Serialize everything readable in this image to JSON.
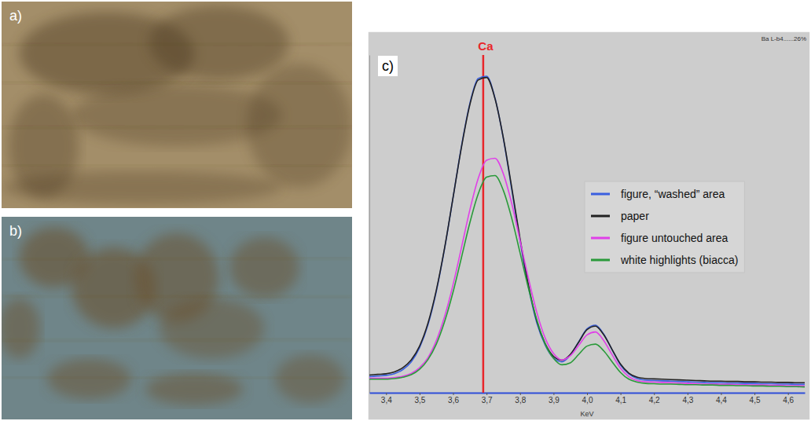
{
  "panel_labels": [
    "a)",
    "b)"
  ],
  "chart_data": {
    "type": "line",
    "panel_label": "c)",
    "x_label": "KeV",
    "x": [
      3.35,
      3.375,
      3.4,
      3.425,
      3.45,
      3.475,
      3.5,
      3.525,
      3.55,
      3.575,
      3.6,
      3.625,
      3.65,
      3.675,
      3.7,
      3.725,
      3.75,
      3.775,
      3.8,
      3.825,
      3.85,
      3.875,
      3.9,
      3.925,
      3.95,
      3.975,
      4.0,
      4.025,
      4.05,
      4.075,
      4.1,
      4.125,
      4.15,
      4.175,
      4.2,
      4.225,
      4.25,
      4.275,
      4.3,
      4.325,
      4.35,
      4.375,
      4.4,
      4.425,
      4.45,
      4.475,
      4.5,
      4.525,
      4.55,
      4.575,
      4.6,
      4.625,
      4.65
    ],
    "series": [
      {
        "name": "figure, “washed” area",
        "color": "#3a5fe0",
        "values": [
          5,
          5.2,
          5.4,
          5.9,
          7.2,
          9.6,
          14,
          21.1,
          31.5,
          45,
          60.7,
          76.6,
          89.9,
          97.7,
          98.4,
          91.7,
          79.1,
          63.3,
          47.2,
          32.8,
          21.7,
          14.8,
          10.8,
          9.6,
          11.7,
          15.8,
          19.9,
          21,
          18.2,
          13.3,
          8.6,
          5.8,
          4.4,
          3.9,
          3.8,
          3.7,
          3.6,
          3.5,
          3.4,
          3.3,
          3.2,
          3.1,
          3.1,
          3,
          3,
          2.9,
          2.9,
          2.8,
          2.8,
          2.7,
          2.7,
          2.6,
          2.6
        ]
      },
      {
        "name": "paper",
        "color": "#222222",
        "values": [
          5.5,
          5.7,
          5.9,
          6.5,
          7.8,
          10.2,
          14.5,
          21.6,
          31.9,
          45.2,
          60.7,
          76.3,
          89.5,
          97.2,
          98,
          91.5,
          79.3,
          63.9,
          47.9,
          33.5,
          22.3,
          15.3,
          11.3,
          10.1,
          11.9,
          15.7,
          19.6,
          20.7,
          18,
          13.4,
          8.9,
          6.1,
          4.8,
          4.4,
          4.3,
          4.2,
          4.1,
          4,
          3.9,
          3.8,
          3.7,
          3.6,
          3.6,
          3.5,
          3.5,
          3.4,
          3.4,
          3.3,
          3.3,
          3.2,
          3.2,
          3.1,
          3.1
        ]
      },
      {
        "name": "figure untouched area",
        "color": "#e040e8",
        "values": [
          4.5,
          4.5,
          4.5,
          4.7,
          5.1,
          6,
          7.8,
          10.9,
          16.2,
          23.8,
          33.6,
          45.1,
          56.8,
          66.6,
          72.3,
          72.9,
          68.1,
          58.9,
          47.3,
          35.6,
          25,
          17,
          12.2,
          10.2,
          11.5,
          14.7,
          18,
          18.9,
          16.2,
          11.8,
          7.6,
          5,
          3.8,
          3.4,
          3.3,
          3.2,
          3.1,
          3,
          2.9,
          2.8,
          2.7,
          2.7,
          2.6,
          2.6,
          2.5,
          2.5,
          2.4,
          2.4,
          2.3,
          2.3,
          2.2,
          2.2,
          2.1
        ]
      },
      {
        "name": "white highlights (biacca)",
        "color": "#2a9a3a",
        "values": [
          4.2,
          4.2,
          4.2,
          4.4,
          4.8,
          5.6,
          7.3,
          10.3,
          15.1,
          22.2,
          31.3,
          42,
          52.8,
          61.8,
          67,
          67.5,
          62.9,
          54.3,
          43.5,
          32.5,
          22.7,
          15.1,
          10.7,
          8.7,
          9.3,
          11.9,
          14.5,
          15.1,
          13,
          9.6,
          6.3,
          4.2,
          3.3,
          2.9,
          2.8,
          2.7,
          2.7,
          2.6,
          2.5,
          2.5,
          2.4,
          2.4,
          2.3,
          2.3,
          2.2,
          2.2,
          2.1,
          2.1,
          2.0,
          2.0,
          1.9,
          1.9,
          1.8
        ]
      }
    ],
    "xlim": [
      3.35,
      4.65
    ],
    "xticks": [
      {
        "value": 3.4,
        "label": "3,4"
      },
      {
        "value": 3.5,
        "label": "3,5"
      },
      {
        "value": 3.6,
        "label": "3,6"
      },
      {
        "value": 3.7,
        "label": "3,7"
      },
      {
        "value": 3.8,
        "label": "3,8"
      },
      {
        "value": 3.9,
        "label": "3,9"
      },
      {
        "value": 4.0,
        "label": "4,0"
      },
      {
        "value": 4.1,
        "label": "4,1"
      },
      {
        "value": 4.2,
        "label": "4,2"
      },
      {
        "value": 4.3,
        "label": "4,3"
      },
      {
        "value": 4.4,
        "label": "4,4"
      },
      {
        "value": 4.5,
        "label": "4,5"
      },
      {
        "value": 4.6,
        "label": "4,6"
      }
    ],
    "ylim": [
      0,
      105
    ],
    "tick_labels": "x",
    "grid": false,
    "legend": "right",
    "annotations": [
      {
        "text": "Ca",
        "x": 3.69,
        "color": "#e8262a"
      },
      {
        "text": "Ba L-b4......26%"
      }
    ]
  }
}
